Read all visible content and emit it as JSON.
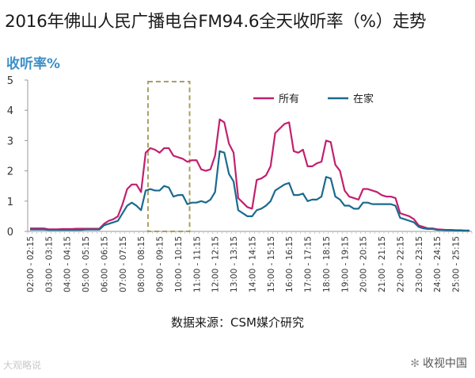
{
  "title": "2016年佛山人民广播电台FM94.6全天收听率（%）走势",
  "source_text": "数据来源：CSM媒介研究",
  "watermark_left": "大观略说",
  "watermark_right": "收视中国",
  "colors": {
    "all": "#c2206e",
    "home": "#1b6a8f",
    "highlight_box": "#a8a060",
    "ylabel": "#3c8fc8"
  },
  "chart_data": {
    "type": "line",
    "ylabel": "收听率%",
    "ylim": [
      0,
      5
    ],
    "yticks": [
      0,
      1,
      2,
      3,
      4,
      5
    ],
    "grid": false,
    "legend_position": "top-right",
    "highlight_range": [
      "08:30-08:45",
      "10:15-10:30"
    ],
    "tick_labels": [
      "02:00 - 02:15",
      "03:00 - 03:15",
      "04:00 - 04:15",
      "05:00 - 05:15",
      "06:00 - 06:15",
      "07:00 - 07:15",
      "08:00 - 08:15",
      "09:00 - 09:15",
      "10:00 - 10:15",
      "11:00 - 11:15",
      "12:00 - 12:15",
      "13:00 - 13:15",
      "14:00 - 14:15",
      "15:00 - 15:15",
      "16:00 - 16:15",
      "17:00 - 17:15",
      "18:00 - 18:15",
      "19:00 - 19:15",
      "20:00 - 20:15",
      "21:00 - 21:15",
      "22:00 - 22:15",
      "23:00 - 23:15",
      "24:00 - 24:15",
      "25:00 - 25:15"
    ],
    "series": [
      {
        "name": "所有",
        "values": [
          0.1,
          0.1,
          0.1,
          0.1,
          0.07,
          0.07,
          0.07,
          0.08,
          0.08,
          0.08,
          0.09,
          0.09,
          0.09,
          0.09,
          0.09,
          0.09,
          0.25,
          0.35,
          0.4,
          0.5,
          0.9,
          1.4,
          1.55,
          1.55,
          1.3,
          2.6,
          2.75,
          2.7,
          2.6,
          2.75,
          2.75,
          2.5,
          2.45,
          2.4,
          2.3,
          2.35,
          2.35,
          2.05,
          2.0,
          2.05,
          2.5,
          3.7,
          3.6,
          2.9,
          2.6,
          1.1,
          0.95,
          0.8,
          0.75,
          1.7,
          1.75,
          1.85,
          2.15,
          3.25,
          3.4,
          3.55,
          3.6,
          2.65,
          2.6,
          2.7,
          2.15,
          2.15,
          2.25,
          2.3,
          3.0,
          2.95,
          2.2,
          2.0,
          1.35,
          1.15,
          1.1,
          1.05,
          1.4,
          1.4,
          1.35,
          1.3,
          1.2,
          1.15,
          1.15,
          1.1,
          0.6,
          0.55,
          0.5,
          0.4,
          0.2,
          0.15,
          0.1,
          0.1,
          0.07,
          0.06,
          0.05,
          0.05,
          0.04,
          0.04,
          0.03,
          0.03
        ]
      },
      {
        "name": "在家",
        "values": [
          0.06,
          0.06,
          0.06,
          0.06,
          0.05,
          0.05,
          0.05,
          0.05,
          0.05,
          0.05,
          0.05,
          0.05,
          0.06,
          0.06,
          0.06,
          0.06,
          0.2,
          0.25,
          0.3,
          0.35,
          0.6,
          0.85,
          0.95,
          0.85,
          0.7,
          1.35,
          1.4,
          1.35,
          1.35,
          1.5,
          1.45,
          1.15,
          1.2,
          1.2,
          0.9,
          0.95,
          0.95,
          1.0,
          0.95,
          1.05,
          1.3,
          2.65,
          2.6,
          1.9,
          1.65,
          0.7,
          0.6,
          0.5,
          0.5,
          0.7,
          0.75,
          0.85,
          1.0,
          1.35,
          1.45,
          1.55,
          1.6,
          1.2,
          1.2,
          1.25,
          1.0,
          1.05,
          1.05,
          1.15,
          1.8,
          1.75,
          1.15,
          1.05,
          0.85,
          0.85,
          0.75,
          0.75,
          0.95,
          0.95,
          0.9,
          0.9,
          0.9,
          0.9,
          0.9,
          0.85,
          0.45,
          0.4,
          0.35,
          0.3,
          0.15,
          0.1,
          0.08,
          0.08,
          0.05,
          0.05,
          0.04,
          0.04,
          0.03,
          0.03,
          0.02,
          0.02
        ]
      }
    ]
  }
}
